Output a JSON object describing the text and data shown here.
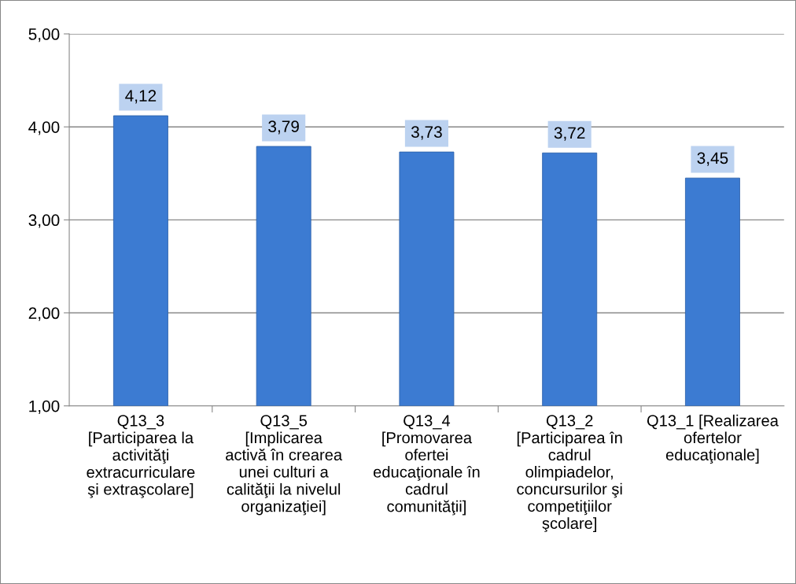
{
  "chart_data": {
    "type": "bar",
    "categories": [
      "Q13_3\n[Participarea la\nactivităţi\nextracurriculare\nşi extraşcolare]",
      "Q13_5\n[Implicarea\nactivă în crearea\nunei culturi a\ncalităţii la nivelul\norganizaţiei]",
      "Q13_4\n[Promovarea\nofertei\neducaţionale în\ncadrul\ncomunităţii]",
      "Q13_2\n[Participarea în\ncadrul\nolimpiadelor,\nconcursurilor şi\ncompetiţiilor\nşcolare]",
      "Q13_1 [Realizarea\nofertelor\neducaţionale]"
    ],
    "values": [
      4.12,
      3.79,
      3.73,
      3.72,
      3.45
    ],
    "value_labels": [
      "4,12",
      "3,79",
      "3,73",
      "3,72",
      "3,45"
    ],
    "color": "#3c7bd2",
    "ylim": [
      1,
      5
    ],
    "yticks": [
      {
        "value": 1,
        "label": "1,00"
      },
      {
        "value": 2,
        "label": "2,00"
      },
      {
        "value": 3,
        "label": "3,00"
      },
      {
        "value": 4,
        "label": "4,00"
      },
      {
        "value": 5,
        "label": "5,00"
      }
    ],
    "grid": "y",
    "legend": false
  }
}
